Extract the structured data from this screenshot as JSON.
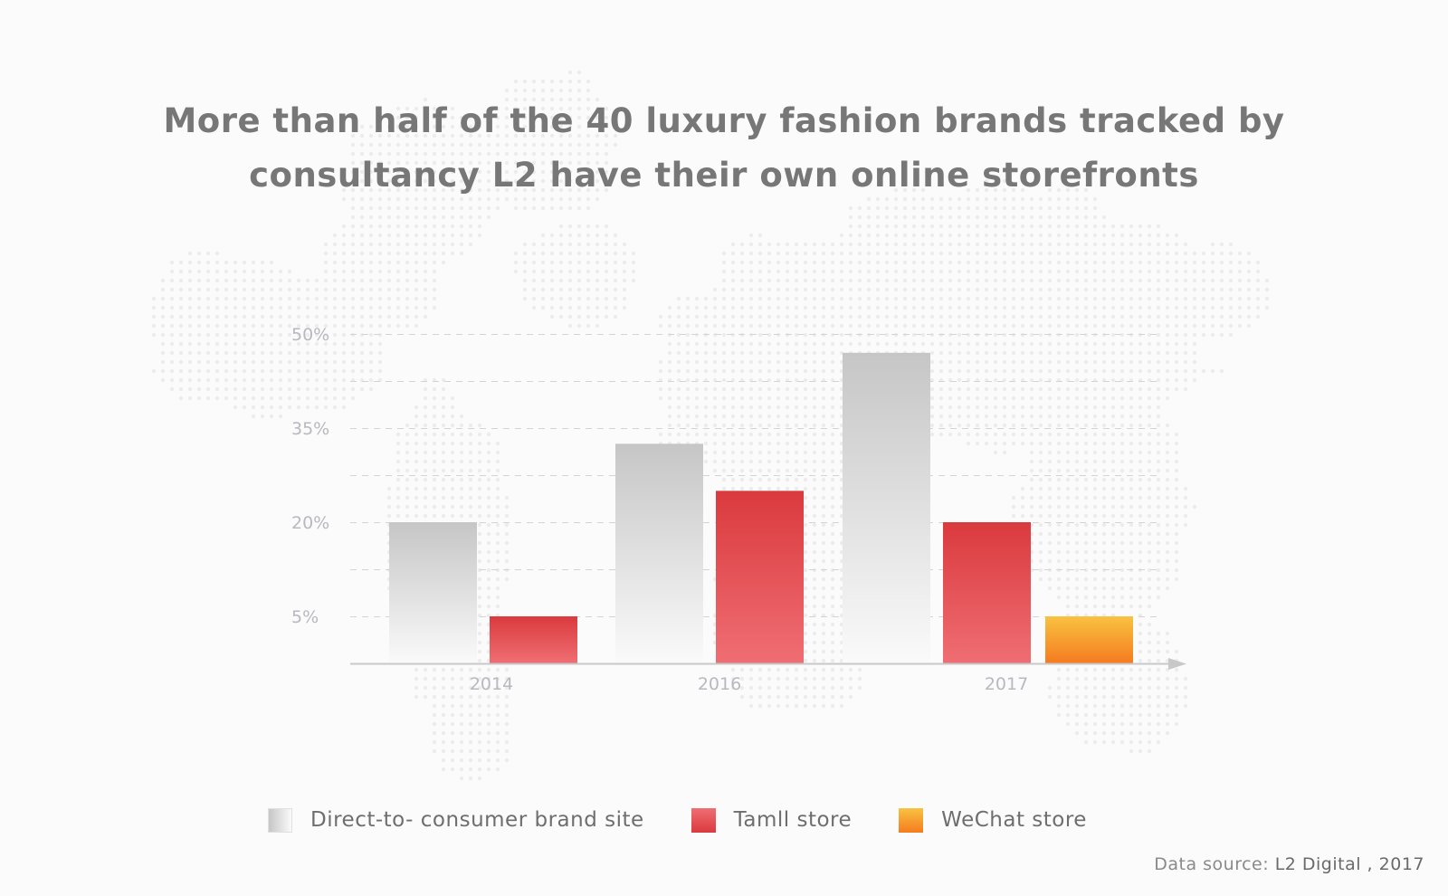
{
  "title_lines": [
    "More than half of the 40 luxury fashion brands tracked by",
    "consultancy L2 have their own online storefronts"
  ],
  "colors": {
    "direct_top": "#c6c6c6",
    "direct_bottom": "#fafafa",
    "tmall_top": "#da3a3e",
    "tmall_bottom": "#ef6e73",
    "wechat_top": "#f8c241",
    "wechat_bottom": "#f57b1f",
    "grid": "#d4d4d4",
    "axis": "#c8c8c8"
  },
  "chart_data": {
    "type": "bar",
    "categories": [
      "2014",
      "2016",
      "2017"
    ],
    "series": [
      {
        "name": "Direct-to- consumer brand site",
        "values": [
          20,
          32.5,
          47
        ]
      },
      {
        "name": "Tamll store",
        "values": [
          5,
          25,
          20
        ]
      },
      {
        "name": "WeChat store",
        "values": [
          null,
          null,
          5
        ]
      }
    ],
    "y_ticks": [
      5,
      20,
      35,
      50
    ],
    "y_tick_labels": [
      "5%",
      "20%",
      "35%",
      "50%"
    ],
    "ylim": [
      -2.5,
      50
    ],
    "grid": true,
    "legend": "bottom",
    "xlabel": "",
    "ylabel": ""
  },
  "source": {
    "prefix": "Data source: ",
    "name": "L2 Digital , 2017"
  }
}
